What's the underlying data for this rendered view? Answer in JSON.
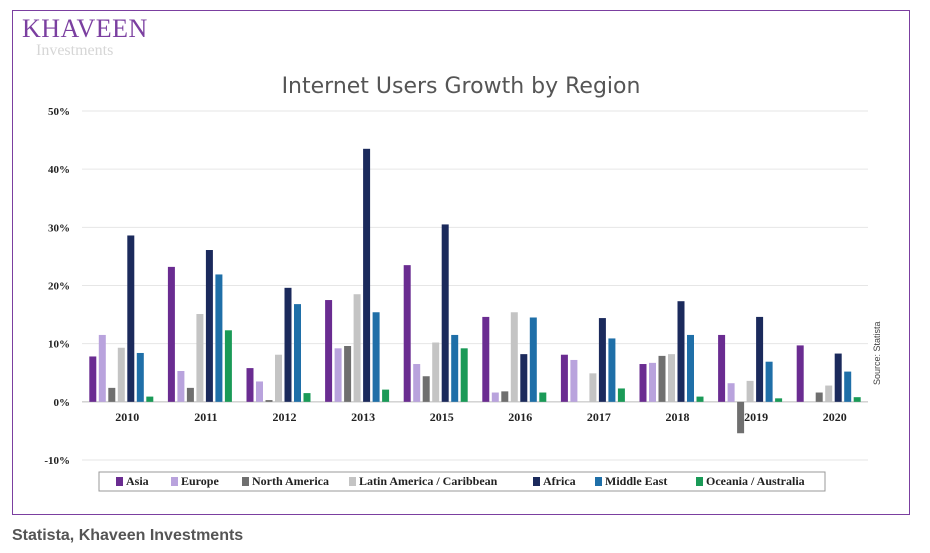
{
  "logo": {
    "main": "KHAVEEN",
    "sub": "Investments"
  },
  "caption": "Statista, Khaveen Investments",
  "source_note": "Source: Statista",
  "colors": {
    "Asia": "#6a2c91",
    "Europe": "#b9a3dd",
    "North America": "#6f6f6f",
    "Latin America / Caribbean": "#c4c4c4",
    "Africa": "#1b2a5c",
    "Middle East": "#1f6fa8",
    "Oceania / Australia": "#1a9a57"
  },
  "chart_data": {
    "type": "bar",
    "title": "Internet Users Growth by Region",
    "xlabel": "",
    "ylabel": "",
    "ylim": [
      -10,
      50
    ],
    "yticks": [
      -10,
      0,
      10,
      20,
      30,
      40,
      50
    ],
    "ytick_labels": [
      "-10%",
      "0%",
      "10%",
      "20%",
      "30%",
      "40%",
      "50%"
    ],
    "grid": true,
    "legend_position": "bottom",
    "categories": [
      "2010",
      "2011",
      "2012",
      "2013",
      "2015",
      "2016",
      "2017",
      "2018",
      "2019",
      "2020"
    ],
    "series": [
      {
        "name": "Asia",
        "values": [
          7.8,
          23.2,
          5.8,
          17.5,
          23.5,
          14.6,
          8.1,
          6.5,
          11.5,
          9.7
        ]
      },
      {
        "name": "Europe",
        "values": [
          11.5,
          5.3,
          3.5,
          9.2,
          6.5,
          1.6,
          7.2,
          6.7,
          3.2,
          0
        ]
      },
      {
        "name": "North America",
        "values": [
          2.4,
          2.4,
          0.3,
          9.6,
          4.4,
          1.8,
          0,
          7.9,
          -5.4,
          1.6
        ]
      },
      {
        "name": "Latin America / Caribbean",
        "values": [
          9.3,
          15.1,
          8.1,
          18.5,
          10.2,
          15.4,
          4.9,
          8.2,
          3.6,
          2.8
        ]
      },
      {
        "name": "Africa",
        "values": [
          28.6,
          26.1,
          19.6,
          43.5,
          30.5,
          8.2,
          14.4,
          17.3,
          14.6,
          8.3
        ]
      },
      {
        "name": "Middle East",
        "values": [
          8.4,
          21.9,
          16.8,
          15.4,
          11.5,
          14.5,
          10.9,
          11.5,
          6.9,
          5.2
        ]
      },
      {
        "name": "Oceania / Australia",
        "values": [
          0.9,
          12.3,
          1.5,
          2.1,
          9.2,
          1.6,
          2.3,
          0.9,
          0.6,
          0.8
        ]
      }
    ]
  }
}
